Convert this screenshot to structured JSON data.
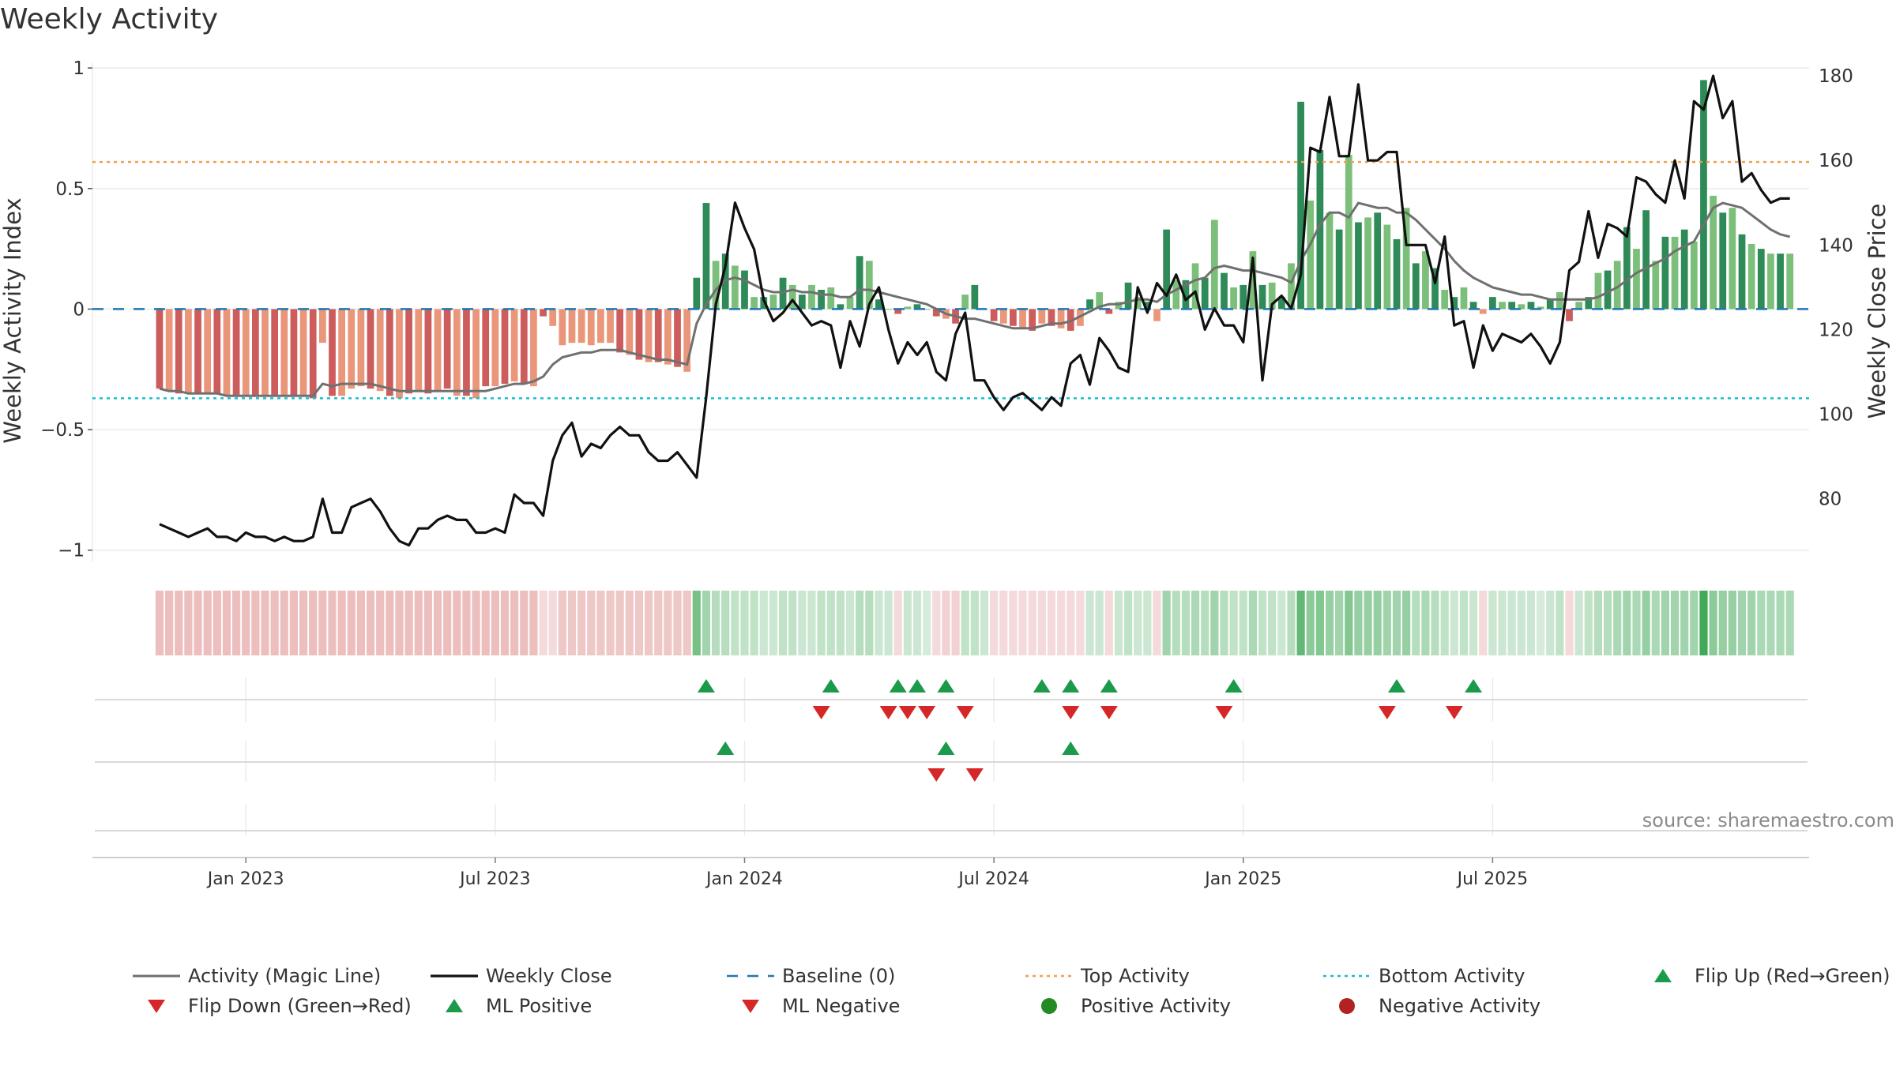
{
  "title": "Weekly Activity",
  "source": "source: sharemaestro.com",
  "colors": {
    "strong_green": "#2e8b57",
    "light_green": "#7cbf7a",
    "strong_red": "#cd5c5c",
    "light_red": "#e9967a",
    "magic_line": "#707070",
    "close_line": "#111111",
    "baseline": "#1f77b4",
    "top": "#f0a050",
    "bottom": "#17becf",
    "up_marker": "#1a9a4a",
    "down_marker": "#d62728",
    "pos_dot": "#228b22",
    "neg_dot": "#b22222"
  },
  "chart_data": {
    "type": "bar+line",
    "title": "Weekly Activity",
    "ylabel_left": "Weekly Activity Index",
    "ylabel_right": "Weekly Close Price",
    "ylim_left": [
      -1.05,
      1.02
    ],
    "ylim_right": [
      65,
      183
    ],
    "yticks_left": [
      {
        "v": 1,
        "label": "1"
      },
      {
        "v": 0.5,
        "label": "0.5"
      },
      {
        "v": 0,
        "label": "0"
      },
      {
        "v": -0.5,
        "label": "−0.5"
      },
      {
        "v": -1,
        "label": "−1"
      }
    ],
    "yticks_right": [
      {
        "v": 180,
        "label": "180"
      },
      {
        "v": 160,
        "label": "160"
      },
      {
        "v": 140,
        "label": "140"
      },
      {
        "v": 120,
        "label": "120"
      },
      {
        "v": 100,
        "label": "100"
      },
      {
        "v": 80,
        "label": "80"
      }
    ],
    "x_range": [
      -7,
      172
    ],
    "xticks": [
      {
        "w": 9,
        "label": "Jan 2023"
      },
      {
        "w": 35,
        "label": "Jul 2023"
      },
      {
        "w": 61,
        "label": "Jan 2024"
      },
      {
        "w": 87,
        "label": "Jul 2024"
      },
      {
        "w": 113,
        "label": "Jan 2025"
      },
      {
        "w": 139,
        "label": "Jul 2025"
      }
    ],
    "reference_lines": {
      "baseline": 0,
      "top_activity": 0.61,
      "bottom_activity": -0.37
    },
    "activity": [
      -0.33,
      -0.34,
      -0.35,
      -0.35,
      -0.35,
      -0.35,
      -0.35,
      -0.36,
      -0.36,
      -0.36,
      -0.36,
      -0.36,
      -0.36,
      -0.36,
      -0.36,
      -0.36,
      -0.37,
      -0.14,
      -0.36,
      -0.36,
      -0.33,
      -0.32,
      -0.33,
      -0.34,
      -0.36,
      -0.37,
      -0.35,
      -0.34,
      -0.35,
      -0.34,
      -0.33,
      -0.36,
      -0.36,
      -0.37,
      -0.32,
      -0.32,
      -0.31,
      -0.3,
      -0.31,
      -0.32,
      -0.03,
      -0.07,
      -0.15,
      -0.14,
      -0.14,
      -0.15,
      -0.14,
      -0.14,
      -0.18,
      -0.19,
      -0.21,
      -0.22,
      -0.22,
      -0.23,
      -0.24,
      -0.26,
      0.13,
      0.44,
      0.2,
      0.23,
      0.18,
      0.16,
      0.05,
      0.05,
      0.06,
      0.13,
      0.1,
      0.06,
      0.1,
      0.08,
      0.09,
      0.02,
      0.05,
      0.22,
      0.2,
      0.04,
      0.0,
      -0.02,
      0.01,
      0.02,
      0.0,
      -0.03,
      -0.04,
      -0.06,
      0.06,
      0.1,
      0.0,
      -0.05,
      -0.06,
      -0.07,
      -0.08,
      -0.09,
      -0.06,
      -0.07,
      -0.08,
      -0.09,
      -0.07,
      0.04,
      0.07,
      -0.02,
      0.03,
      0.11,
      0.05,
      0.03,
      -0.05,
      0.33,
      0.12,
      0.12,
      0.19,
      0.13,
      0.37,
      0.15,
      0.09,
      0.1,
      0.24,
      0.1,
      0.11,
      0.05,
      0.19,
      0.86,
      0.45,
      0.66,
      0.4,
      0.33,
      0.64,
      0.36,
      0.38,
      0.4,
      0.35,
      0.29,
      0.42,
      0.19,
      0.24,
      0.17,
      0.08,
      0.05,
      0.09,
      0.03,
      -0.02,
      0.05,
      0.03,
      0.03,
      0.02,
      0.03,
      0.01,
      0.04,
      0.07,
      -0.05,
      0.03,
      0.05,
      0.15,
      0.16,
      0.2,
      0.34,
      0.25,
      0.41,
      0.2,
      0.3,
      0.3,
      0.33,
      0.28,
      0.95,
      0.47,
      0.4,
      0.42,
      0.31,
      0.27,
      0.25,
      0.23,
      0.23,
      0.23
    ],
    "strong_weeks": [
      0,
      2,
      4,
      6,
      8,
      10,
      12,
      14,
      16,
      18,
      22,
      24,
      26,
      28,
      30,
      32,
      34,
      36,
      38,
      40,
      48,
      50,
      52,
      54,
      56,
      57,
      59,
      61,
      63,
      65,
      67,
      69,
      71,
      73,
      75,
      77,
      79,
      81,
      83,
      85,
      87,
      89,
      91,
      93,
      95,
      97,
      99,
      101,
      103,
      105,
      107,
      109,
      111,
      113,
      115,
      117,
      119,
      121,
      123,
      125,
      127,
      129,
      131,
      133,
      135,
      137,
      139,
      141,
      143,
      145,
      147,
      149,
      151,
      153,
      155,
      157,
      159,
      161,
      163,
      165,
      167,
      169,
      171
    ],
    "magic_line": [
      -0.33,
      -0.34,
      -0.34,
      -0.35,
      -0.35,
      -0.35,
      -0.35,
      -0.36,
      -0.36,
      -0.36,
      -0.36,
      -0.36,
      -0.36,
      -0.36,
      -0.36,
      -0.36,
      -0.36,
      -0.31,
      -0.32,
      -0.31,
      -0.31,
      -0.31,
      -0.31,
      -0.32,
      -0.33,
      -0.34,
      -0.34,
      -0.34,
      -0.34,
      -0.34,
      -0.34,
      -0.34,
      -0.34,
      -0.34,
      -0.34,
      -0.33,
      -0.32,
      -0.31,
      -0.31,
      -0.3,
      -0.28,
      -0.23,
      -0.2,
      -0.19,
      -0.18,
      -0.18,
      -0.17,
      -0.17,
      -0.17,
      -0.18,
      -0.19,
      -0.2,
      -0.21,
      -0.21,
      -0.22,
      -0.23,
      -0.06,
      0.02,
      0.08,
      0.12,
      0.13,
      0.12,
      0.1,
      0.08,
      0.07,
      0.07,
      0.08,
      0.07,
      0.07,
      0.06,
      0.06,
      0.05,
      0.05,
      0.08,
      0.08,
      0.07,
      0.06,
      0.05,
      0.04,
      0.03,
      0.02,
      0.0,
      -0.02,
      -0.03,
      -0.04,
      -0.04,
      -0.05,
      -0.06,
      -0.07,
      -0.08,
      -0.08,
      -0.08,
      -0.07,
      -0.06,
      -0.06,
      -0.05,
      -0.03,
      -0.01,
      0.01,
      0.02,
      0.02,
      0.03,
      0.04,
      0.04,
      0.03,
      0.06,
      0.08,
      0.1,
      0.12,
      0.13,
      0.17,
      0.18,
      0.17,
      0.16,
      0.16,
      0.15,
      0.14,
      0.13,
      0.11,
      0.2,
      0.27,
      0.35,
      0.4,
      0.4,
      0.38,
      0.44,
      0.43,
      0.42,
      0.42,
      0.4,
      0.4,
      0.37,
      0.33,
      0.29,
      0.25,
      0.2,
      0.16,
      0.13,
      0.11,
      0.09,
      0.08,
      0.07,
      0.06,
      0.06,
      0.05,
      0.04,
      0.04,
      0.04,
      0.04,
      0.04,
      0.05,
      0.07,
      0.09,
      0.12,
      0.15,
      0.17,
      0.19,
      0.21,
      0.24,
      0.26,
      0.28,
      0.35,
      0.42,
      0.44,
      0.43,
      0.42,
      0.39,
      0.36,
      0.33,
      0.31,
      0.3
    ],
    "weekly_close": [
      74,
      73,
      72,
      71,
      72,
      73,
      71,
      71,
      70,
      72,
      71,
      71,
      70,
      71,
      70,
      70,
      71,
      80,
      72,
      72,
      78,
      79,
      80,
      77,
      73,
      70,
      69,
      73,
      73,
      75,
      76,
      75,
      75,
      72,
      72,
      73,
      72,
      81,
      79,
      79,
      76,
      89,
      95,
      98,
      90,
      93,
      92,
      95,
      97,
      95,
      95,
      91,
      89,
      89,
      91,
      88,
      85,
      104,
      126,
      135,
      150,
      144,
      139,
      127,
      122,
      124,
      127,
      124,
      121,
      122,
      121,
      111,
      122,
      116,
      126,
      130,
      120,
      112,
      117,
      114,
      117,
      110,
      108,
      119,
      124,
      108,
      108,
      104,
      101,
      104,
      105,
      103,
      101,
      104,
      102,
      112,
      114,
      107,
      118,
      115,
      111,
      110,
      130,
      124,
      131,
      128,
      133,
      127,
      129,
      120,
      125,
      121,
      121,
      117,
      137,
      108,
      126,
      128,
      125,
      133,
      163,
      162,
      175,
      161,
      161,
      178,
      160,
      160,
      162,
      162,
      140,
      140,
      140,
      131,
      142,
      121,
      122,
      111,
      121,
      115,
      119,
      118,
      117,
      119,
      116,
      112,
      117,
      134,
      136,
      148,
      137,
      145,
      144,
      142,
      156,
      155,
      152,
      150,
      160,
      151,
      174,
      172,
      180,
      170,
      174,
      155,
      157,
      153,
      150,
      151,
      151
    ],
    "heat_intensity": [
      0.35,
      0.35,
      0.35,
      0.35,
      0.35,
      0.35,
      0.35,
      0.35,
      0.35,
      0.35,
      0.35,
      0.35,
      0.35,
      0.35,
      0.35,
      0.35,
      0.35,
      0.35,
      0.35,
      0.35,
      0.35,
      0.35,
      0.35,
      0.35,
      0.35,
      0.35,
      0.35,
      0.35,
      0.35,
      0.35,
      0.35,
      0.35,
      0.35,
      0.35,
      0.35,
      0.35,
      0.35,
      0.35,
      0.35,
      0.35,
      0.2,
      0.2,
      0.3,
      0.3,
      0.3,
      0.3,
      0.3,
      0.3,
      0.3,
      0.3,
      0.3,
      0.3,
      0.3,
      0.3,
      0.3,
      0.3,
      0.65,
      0.45,
      0.35,
      0.35,
      0.3,
      0.3,
      0.3,
      0.25,
      0.25,
      0.3,
      0.3,
      0.25,
      0.25,
      0.3,
      0.3,
      0.3,
      0.25,
      0.35,
      0.35,
      0.25,
      0.25,
      0.2,
      0.25,
      0.25,
      0.2,
      0.2,
      0.25,
      0.25,
      0.3,
      0.3,
      0.25,
      0.2,
      0.2,
      0.2,
      0.2,
      0.2,
      0.2,
      0.2,
      0.2,
      0.2,
      0.2,
      0.25,
      0.25,
      0.2,
      0.25,
      0.3,
      0.25,
      0.25,
      0.2,
      0.45,
      0.35,
      0.35,
      0.4,
      0.35,
      0.45,
      0.35,
      0.3,
      0.3,
      0.4,
      0.3,
      0.3,
      0.25,
      0.35,
      0.75,
      0.55,
      0.6,
      0.5,
      0.45,
      0.6,
      0.5,
      0.5,
      0.5,
      0.45,
      0.45,
      0.5,
      0.35,
      0.4,
      0.35,
      0.3,
      0.25,
      0.3,
      0.25,
      0.2,
      0.25,
      0.25,
      0.25,
      0.25,
      0.25,
      0.2,
      0.25,
      0.3,
      0.2,
      0.25,
      0.3,
      0.35,
      0.35,
      0.4,
      0.45,
      0.4,
      0.5,
      0.4,
      0.45,
      0.45,
      0.45,
      0.45,
      0.9,
      0.55,
      0.5,
      0.5,
      0.45,
      0.45,
      0.4,
      0.4,
      0.4,
      0.4
    ],
    "flip_up_weeks": [
      57,
      70,
      77,
      79,
      82,
      92,
      95,
      99,
      112,
      129,
      137
    ],
    "flip_down_weeks": [
      69,
      76,
      78,
      80,
      84,
      95,
      99,
      111,
      128,
      135
    ],
    "ml_positive_weeks": [
      59,
      82,
      95
    ],
    "ml_negative_weeks": [
      81,
      85
    ],
    "positive_activity_weeks": [],
    "negative_activity_weeks": [],
    "legend": [
      {
        "key": "magic",
        "label": "Activity (Magic Line)"
      },
      {
        "key": "close",
        "label": "Weekly Close"
      },
      {
        "key": "baseline",
        "label": "Baseline (0)"
      },
      {
        "key": "top",
        "label": "Top Activity"
      },
      {
        "key": "bottom",
        "label": "Bottom Activity"
      },
      {
        "key": "flipup",
        "label": "Flip Up (Red→Green)"
      },
      {
        "key": "flipdown",
        "label": "Flip Down (Green→Red)"
      },
      {
        "key": "mlpos",
        "label": "ML Positive"
      },
      {
        "key": "mlneg",
        "label": "ML Negative"
      },
      {
        "key": "posact",
        "label": "Positive Activity"
      },
      {
        "key": "negact",
        "label": "Negative Activity"
      }
    ]
  }
}
